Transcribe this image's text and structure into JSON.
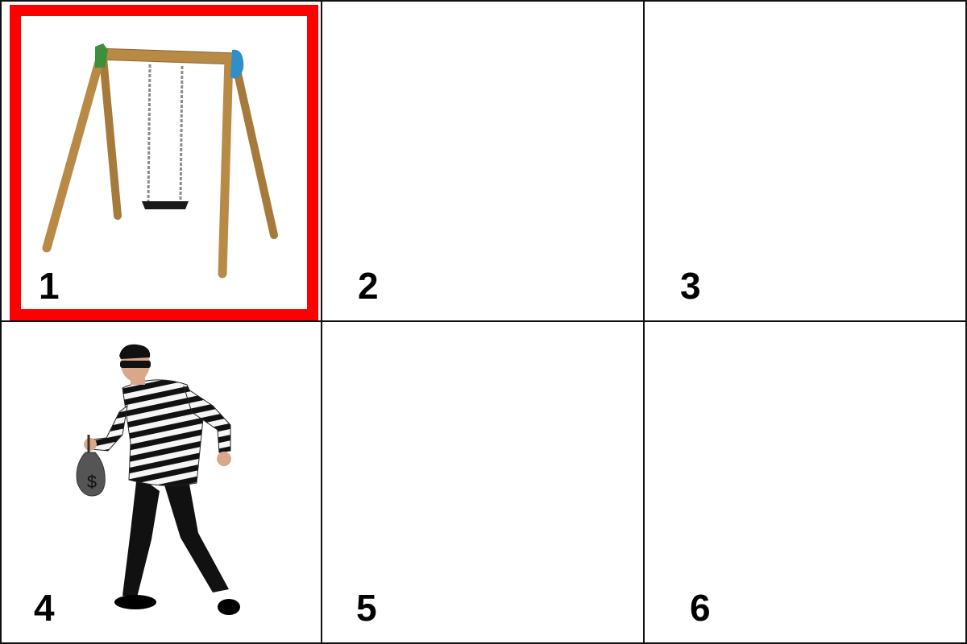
{
  "cells": [
    {
      "number": "1",
      "picture": "swing-set",
      "selected": true
    },
    {
      "number": "2",
      "picture": "",
      "selected": false
    },
    {
      "number": "3",
      "picture": "",
      "selected": false
    },
    {
      "number": "4",
      "picture": "burglar",
      "selected": false
    },
    {
      "number": "5",
      "picture": "",
      "selected": false
    },
    {
      "number": "6",
      "picture": "",
      "selected": false
    }
  ],
  "colors": {
    "selection_border": "#ff0000",
    "grid_line": "#111111",
    "wood": "#b88a45",
    "swing_seat": "#1a1a1a",
    "swing_cap": "#2f8fc9"
  }
}
